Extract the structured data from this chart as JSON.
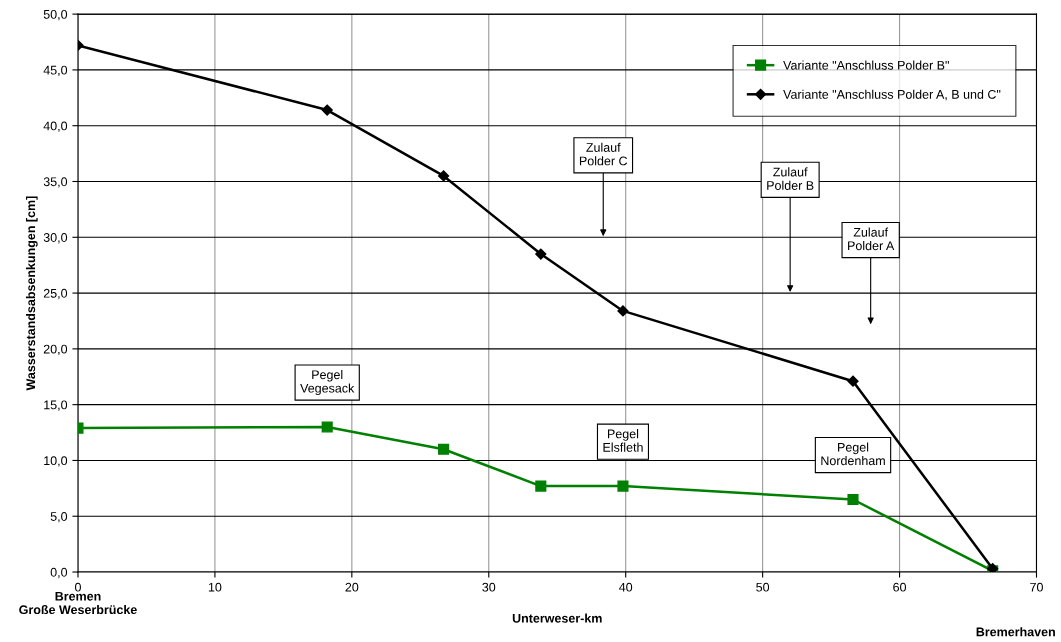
{
  "chart_data": {
    "type": "line",
    "xlabel": "Unterweser-km",
    "ylabel": "Wasserstandsabsenkungen [cm]",
    "series": [
      {
        "name": "Variante \"Anschluss Polder B\"",
        "color": "#008000",
        "marker": "square",
        "x": [
          0,
          18.2,
          26.7,
          33.8,
          39.8,
          56.6,
          66.8
        ],
        "values": [
          12.9,
          13.0,
          11.0,
          7.7,
          7.7,
          6.5,
          0.1
        ]
      },
      {
        "name": "Variante \"Anschluss Polder A, B und C\"",
        "color": "#000000",
        "marker": "diamond",
        "x": [
          0,
          18.2,
          26.7,
          33.8,
          39.8,
          56.6,
          66.8
        ],
        "values": [
          47.2,
          41.4,
          35.5,
          28.5,
          23.4,
          17.1,
          0.3
        ]
      }
    ],
    "xlim": [
      0,
      70
    ],
    "xticks": [
      0,
      10,
      20,
      30,
      40,
      50,
      60,
      70
    ],
    "ylim": [
      0,
      50
    ],
    "yticks": [
      {
        "value": 0,
        "label": "0,0"
      },
      {
        "value": 5,
        "label": "5,0"
      },
      {
        "value": 10,
        "label": "10,0"
      },
      {
        "value": 15,
        "label": "15,0"
      },
      {
        "value": 20,
        "label": "20,0"
      },
      {
        "value": 25,
        "label": "25,0"
      },
      {
        "value": 30,
        "label": "30,0"
      },
      {
        "value": 35,
        "label": "35,0"
      },
      {
        "value": 40,
        "label": "40,0"
      },
      {
        "value": 45,
        "label": "45,0"
      },
      {
        "value": 50,
        "label": "50,0"
      }
    ],
    "grid": true,
    "legend": "top right",
    "line_style": "solid",
    "annotations": [
      "Bremen\nGroße Weserbrücke",
      "Bremerhaven",
      {
        "text": "Pegel\nVegesack",
        "x": 18.2,
        "y": 13.0
      },
      {
        "text": "Pegel\nElsfleth",
        "x": 39.8,
        "y": 7.7
      },
      {
        "text": "Pegel\nNordenham",
        "x": 56.6,
        "y": 6.5
      },
      "Zulauf\nPolder C",
      "Zulauf\nPolder B",
      "Zulauf\nPolder A"
    ]
  }
}
